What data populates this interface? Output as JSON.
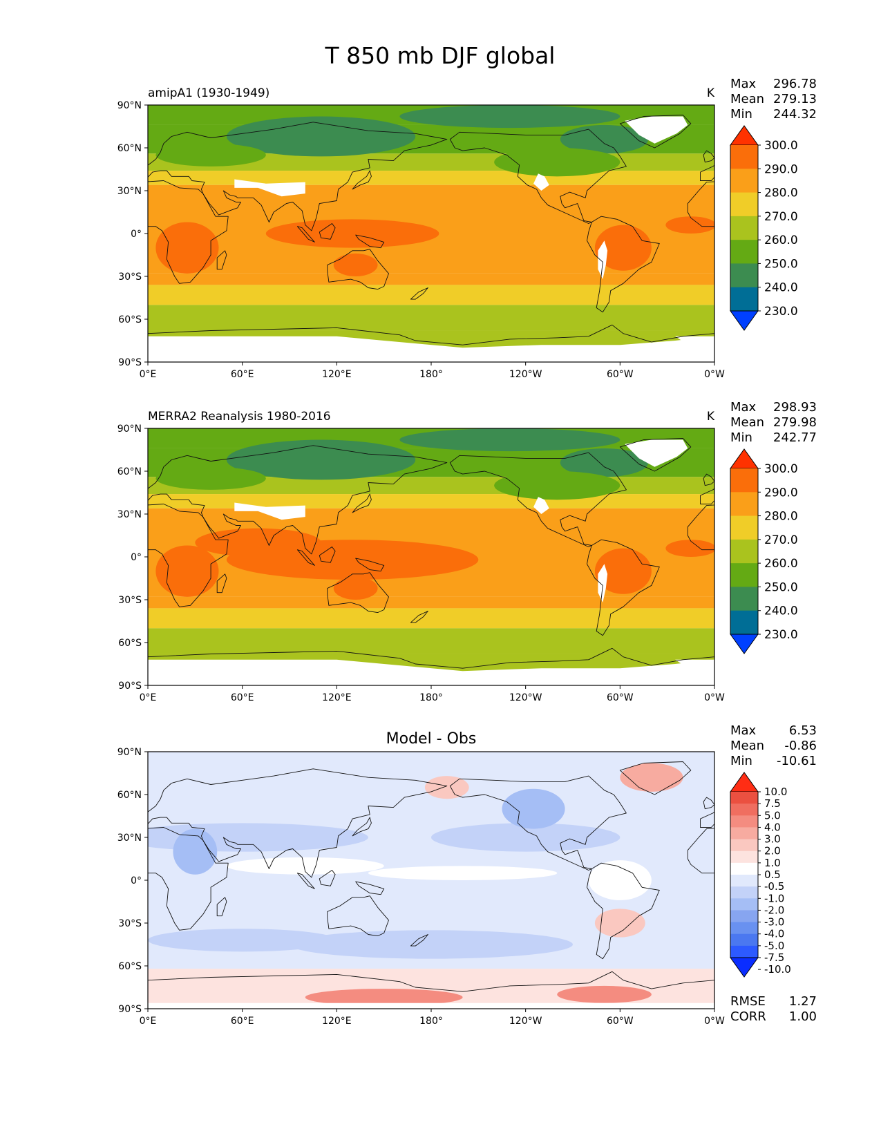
{
  "figure": {
    "title": "T 850 mb DJF global",
    "xticks": [
      "0°E",
      "60°E",
      "120°E",
      "180°",
      "120°W",
      "60°W",
      "0°W"
    ],
    "yticks": [
      "90°N",
      "60°N",
      "30°N",
      "0°",
      "30°S",
      "60°S",
      "90°S"
    ]
  },
  "colors": {
    "temp_levels": [
      "#0040ff",
      "#006e96",
      "#3c8c50",
      "#64aa14",
      "#aac31e",
      "#f0cd28",
      "#fa9f19",
      "#fa6e0a",
      "#ff3200"
    ],
    "diff_levels": [
      "#0a2dff",
      "#2d5aff",
      "#4b78f0",
      "#6991f0",
      "#87a5f0",
      "#a5bef5",
      "#c3d2f8",
      "#e1e9fc",
      "#ffffff",
      "#fde3df",
      "#fac8c0",
      "#f7aba0",
      "#f48c80",
      "#f06e60",
      "#eb5040",
      "#ff2d14"
    ],
    "missing": "#ffffff"
  },
  "chart_data": [
    {
      "type": "heatmap",
      "panel": "test",
      "title": "amipA1 (1930-1949)",
      "units": "K",
      "stats": {
        "max_label": "Max",
        "max": "296.78",
        "mean_label": "Mean",
        "mean": "279.13",
        "min_label": "Min",
        "min": "244.32"
      },
      "colorbar_levels": [
        230.0,
        240.0,
        250.0,
        260.0,
        270.0,
        280.0,
        290.0,
        300.0
      ],
      "colorbar_labels": [
        "230.0",
        "240.0",
        "250.0",
        "260.0",
        "270.0",
        "280.0",
        "290.0",
        "300.0"
      ],
      "xlim": [
        0,
        360
      ],
      "ylim": [
        -90,
        90
      ]
    },
    {
      "type": "heatmap",
      "panel": "reference",
      "title": "MERRA2 Reanalysis 1980-2016",
      "units": "K",
      "stats": {
        "max_label": "Max",
        "max": "298.93",
        "mean_label": "Mean",
        "mean": "279.98",
        "min_label": "Min",
        "min": "242.77"
      },
      "colorbar_levels": [
        230.0,
        240.0,
        250.0,
        260.0,
        270.0,
        280.0,
        290.0,
        300.0
      ],
      "colorbar_labels": [
        "230.0",
        "240.0",
        "250.0",
        "260.0",
        "270.0",
        "280.0",
        "290.0",
        "300.0"
      ],
      "xlim": [
        0,
        360
      ],
      "ylim": [
        -90,
        90
      ]
    },
    {
      "type": "heatmap",
      "panel": "difference",
      "title": "Model - Obs",
      "units": "",
      "stats": {
        "max_label": "Max",
        "max": "6.53",
        "mean_label": "Mean",
        "mean": "-0.86",
        "min_label": "Min",
        "min": "-10.61"
      },
      "colorbar_levels": [
        -10.0,
        -7.5,
        -5.0,
        -4.0,
        -3.0,
        -2.0,
        -1.0,
        -0.5,
        0.5,
        1.0,
        2.0,
        3.0,
        4.0,
        5.0,
        7.5,
        10.0
      ],
      "colorbar_labels": [
        "-10.0",
        "-7.5",
        "-5.0",
        "-4.0",
        "-3.0",
        "-2.0",
        "-1.0",
        "-0.5",
        "0.5",
        "1.0",
        "2.0",
        "3.0",
        "4.0",
        "5.0",
        "7.5",
        "10.0"
      ],
      "metrics": {
        "rmse_label": "RMSE",
        "rmse": "1.27",
        "corr_label": "CORR",
        "corr": "1.00"
      },
      "xlim": [
        0,
        360
      ],
      "ylim": [
        -90,
        90
      ]
    }
  ]
}
